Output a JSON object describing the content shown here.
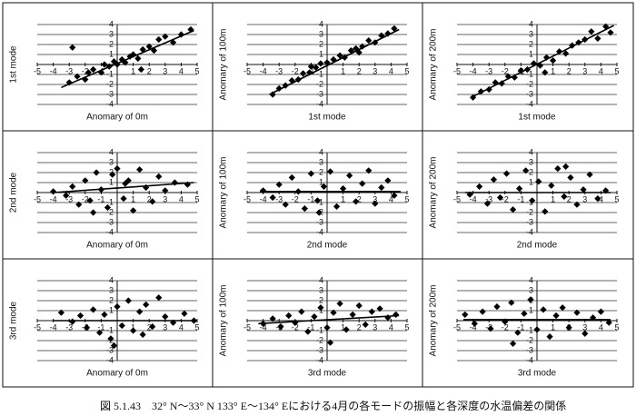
{
  "caption": "図 5.1.43　32° N～33° N 133° E～134° Eにおける4月の各モードの振幅と各深度の水温偏差の関係",
  "chart_data": [
    {
      "type": "scatter",
      "x_label": "Anomary of 0m",
      "y_label": "1st mode",
      "color": "#000000",
      "grid": true,
      "xlim": [
        -5,
        5
      ],
      "ylim": [
        -4,
        4
      ],
      "xticks": [
        -5,
        -4,
        -3,
        -2,
        -1,
        1,
        2,
        3,
        4,
        5
      ],
      "yticks": [
        -4,
        -3,
        -2,
        -1,
        1,
        2,
        3,
        4
      ],
      "x": [
        -3,
        -2.5,
        -2,
        -1.8,
        -1.5,
        -1,
        -0.8,
        -0.5,
        -0.2,
        0,
        0.3,
        0.5,
        0.8,
        1,
        1.3,
        1.6,
        2,
        2.3,
        2.6,
        3,
        3.5,
        4,
        4.6,
        -2.8,
        1.5
      ],
      "y": [
        -1.8,
        -1.2,
        -1.5,
        -0.8,
        -0.5,
        -0.8,
        0,
        -0.2,
        0.3,
        0,
        0.5,
        0.2,
        0.8,
        1,
        0.6,
        1.5,
        1.8,
        1.4,
        2.5,
        2.8,
        2.2,
        3,
        3.5,
        1.7,
        -0.5
      ],
      "trend_x": [
        -3.5,
        4.8
      ],
      "trend_y": [
        -2.3,
        3.4
      ]
    },
    {
      "type": "scatter",
      "x_label": "1st mode",
      "y_label": "Anomary of 100m",
      "color": "#000000",
      "grid": true,
      "xlim": [
        -5,
        5
      ],
      "ylim": [
        -4,
        4
      ],
      "xticks": [
        -5,
        -4,
        -3,
        -2,
        -1,
        1,
        2,
        3,
        4,
        5
      ],
      "yticks": [
        -4,
        -3,
        -2,
        -1,
        1,
        2,
        3,
        4
      ],
      "x": [
        -3.4,
        -3,
        -2.6,
        -2.2,
        -1.8,
        -1.5,
        -1.1,
        -0.7,
        -0.4,
        0,
        0.4,
        0.8,
        1.1,
        1.5,
        1.8,
        2.2,
        2.6,
        3,
        3.4,
        3.8,
        4.2,
        -1,
        2
      ],
      "y": [
        -3,
        -2.4,
        -2.1,
        -1.6,
        -1.5,
        -0.9,
        -0.8,
        -0.3,
        0.1,
        0.2,
        0.5,
        0.9,
        0.7,
        1.4,
        1.6,
        1.8,
        2.4,
        2.2,
        2.9,
        3.1,
        3.6,
        -0.2,
        1.2
      ],
      "trend_x": [
        -3.6,
        4.5
      ],
      "trend_y": [
        -3,
        3.5
      ]
    },
    {
      "type": "scatter",
      "x_label": "1st mode",
      "y_label": "Anomary of 200m",
      "color": "#000000",
      "grid": true,
      "xlim": [
        -5,
        5
      ],
      "ylim": [
        -4,
        4
      ],
      "xticks": [
        -5,
        -4,
        -3,
        -2,
        -1,
        1,
        2,
        3,
        4,
        5
      ],
      "yticks": [
        -4,
        -3,
        -2,
        -1,
        1,
        2,
        3,
        4
      ],
      "x": [
        -4,
        -3.5,
        -3,
        -2.6,
        -2.2,
        -1.8,
        -1.4,
        -1,
        -0.6,
        -0.2,
        0.2,
        0.6,
        1,
        1.4,
        1.8,
        2.2,
        2.6,
        3,
        3.4,
        3.8,
        4.3,
        4.6,
        0.5
      ],
      "y": [
        -3.3,
        -2.7,
        -2.5,
        -1.8,
        -1.9,
        -1.2,
        -1.3,
        -0.6,
        -0.5,
        0.1,
        -0.1,
        0.7,
        0.4,
        1.3,
        1.1,
        1.9,
        2.2,
        2.5,
        3.3,
        2.6,
        3.8,
        3.2,
        -0.8
      ],
      "trend_x": [
        -4,
        4.8
      ],
      "trend_y": [
        -3.2,
        3.9
      ]
    },
    {
      "type": "scatter",
      "x_label": "Anomary of 0m",
      "y_label": "2nd mode",
      "color": "#000000",
      "grid": true,
      "xlim": [
        -5,
        5
      ],
      "ylim": [
        -4,
        4
      ],
      "xticks": [
        -5,
        -4,
        -3,
        -2,
        -1,
        1,
        2,
        3,
        4,
        5
      ],
      "yticks": [
        -4,
        -3,
        -2,
        -1,
        1,
        2,
        3,
        4
      ],
      "x": [
        -4,
        -3.2,
        -2.8,
        -2.4,
        -2,
        -1.7,
        -1.3,
        -1,
        -0.6,
        -0.3,
        0,
        0.4,
        0.7,
        1,
        1.4,
        1.8,
        2.2,
        2.6,
        3,
        3.6,
        4.4,
        -1.5,
        0.5
      ],
      "y": [
        0.1,
        -0.3,
        0.6,
        -1.2,
        1.2,
        -0.8,
        2,
        0.3,
        -1.5,
        1.8,
        2.4,
        -0.6,
        1.2,
        -1.8,
        2.3,
        0.5,
        -0.9,
        1.6,
        0.2,
        1,
        0.8,
        -2,
        0.9
      ],
      "trend_x": [
        -4,
        4.8
      ],
      "trend_y": [
        0,
        1
      ]
    },
    {
      "type": "scatter",
      "x_label": "2nd mode",
      "y_label": "Anomary of 100m",
      "color": "#000000",
      "grid": true,
      "xlim": [
        -5,
        5
      ],
      "ylim": [
        -4,
        4
      ],
      "xticks": [
        -5,
        -4,
        -3,
        -2,
        -1,
        1,
        2,
        3,
        4,
        5
      ],
      "yticks": [
        -4,
        -3,
        -2,
        -1,
        1,
        2,
        3,
        4
      ],
      "x": [
        -4,
        -3.4,
        -3,
        -2.6,
        -2.2,
        -1.8,
        -1.4,
        -1,
        -0.6,
        -0.2,
        0.2,
        0.6,
        1,
        1.4,
        1.8,
        2.2,
        2.6,
        3,
        3.4,
        3.8,
        4.2,
        -0.5
      ],
      "y": [
        0.2,
        -0.5,
        0.8,
        -1.2,
        1.5,
        0.1,
        -1.6,
        1.9,
        -0.8,
        0.6,
        2.1,
        -1.4,
        0.4,
        1.7,
        -0.9,
        0.9,
        2.2,
        -1.1,
        0.5,
        1.2,
        -0.3,
        -2
      ],
      "trend_x": [
        -4.2,
        4.6
      ],
      "trend_y": [
        0.1,
        0.1
      ]
    },
    {
      "type": "scatter",
      "x_label": "2nd mode",
      "y_label": "Anomary of 200m",
      "color": "#000000",
      "grid": true,
      "xlim": [
        -5,
        5
      ],
      "ylim": [
        -4,
        4
      ],
      "xticks": [
        -5,
        -4,
        -3,
        -2,
        -1,
        1,
        2,
        3,
        4,
        5
      ],
      "yticks": [
        -4,
        -3,
        -2,
        -1,
        1,
        2,
        3,
        4
      ],
      "x": [
        -4.2,
        -3.6,
        -3.1,
        -2.7,
        -2.3,
        -1.9,
        -1.5,
        -1.1,
        -0.7,
        -0.3,
        0.1,
        0.5,
        0.9,
        1.3,
        1.7,
        2.1,
        2.5,
        2.9,
        3.3,
        3.8,
        4.3,
        1.8
      ],
      "y": [
        -0.2,
        0.6,
        -1.1,
        1.3,
        -0.5,
        1.9,
        -1.7,
        0.4,
        2.2,
        -0.8,
        1.1,
        -1.9,
        0.7,
        2.4,
        -0.4,
        1.5,
        -1.2,
        0.3,
        1.8,
        -0.6,
        0.2,
        2.6
      ],
      "trend_x": [
        -4.5,
        4.6
      ],
      "trend_y": [
        0,
        0
      ]
    },
    {
      "type": "scatter",
      "x_label": "Anomary of 0m",
      "y_label": "3rd mode",
      "color": "#000000",
      "grid": true,
      "xlim": [
        -5,
        5
      ],
      "ylim": [
        -4,
        4
      ],
      "xticks": [
        -5,
        -4,
        -3,
        -2,
        -1,
        1,
        2,
        3,
        4,
        5
      ],
      "yticks": [
        -4,
        -3,
        -2,
        -1,
        1,
        2,
        3,
        4
      ],
      "x": [
        -3.5,
        -2.8,
        -2.3,
        -1.9,
        -1.5,
        -1.1,
        -0.8,
        -0.4,
        0,
        0.3,
        0.7,
        1,
        1.4,
        1.8,
        2.2,
        2.6,
        3,
        3.5,
        4.2,
        4.8,
        -0.2,
        1.6
      ],
      "y": [
        0.8,
        -0.1,
        0.5,
        -0.7,
        1.1,
        -1.2,
        0.6,
        -1.8,
        1.4,
        -0.5,
        2,
        -1,
        0.9,
        1.6,
        -0.6,
        2.3,
        0.4,
        -0.2,
        0.7,
        0,
        -2.5,
        -1.4
      ],
      "trend_x": [
        -4,
        4.8
      ],
      "trend_y": [
        0,
        0
      ]
    },
    {
      "type": "scatter",
      "x_label": "3rd mode",
      "y_label": "Anomary of 100m",
      "color": "#000000",
      "grid": true,
      "xlim": [
        -5,
        5
      ],
      "ylim": [
        -4,
        4
      ],
      "xticks": [
        -5,
        -4,
        -3,
        -2,
        -1,
        1,
        2,
        3,
        4,
        5
      ],
      "yticks": [
        -4,
        -3,
        -2,
        -1,
        1,
        2,
        3,
        4
      ],
      "x": [
        -4,
        -3.4,
        -2.9,
        -2.4,
        -2,
        -1.6,
        -1.2,
        -0.8,
        -0.4,
        0,
        0.4,
        0.8,
        1.2,
        1.6,
        2,
        2.4,
        2.8,
        3.3,
        3.8,
        4.3,
        0.2
      ],
      "y": [
        -0.3,
        0.2,
        -0.6,
        0.5,
        -0.2,
        0.9,
        -1.1,
        0.4,
        1.3,
        -0.7,
        0.8,
        1.7,
        -0.9,
        0.6,
        1.5,
        -0.4,
        0.9,
        1.2,
        0.3,
        0.6,
        -2.2
      ],
      "trend_x": [
        -4.3,
        4.5
      ],
      "trend_y": [
        -0.3,
        0.5
      ]
    },
    {
      "type": "scatter",
      "x_label": "3rd mode",
      "y_label": "Anomary of 200m",
      "color": "#000000",
      "grid": true,
      "xlim": [
        -5,
        5
      ],
      "ylim": [
        -4,
        4
      ],
      "xticks": [
        -5,
        -4,
        -3,
        -2,
        -1,
        1,
        2,
        3,
        4,
        5
      ],
      "yticks": [
        -4,
        -3,
        -2,
        -1,
        1,
        2,
        3,
        4
      ],
      "x": [
        -4.5,
        -3.9,
        -3.4,
        -2.9,
        -2.5,
        -2,
        -1.6,
        -1.2,
        -0.8,
        -0.4,
        0,
        0.4,
        0.8,
        1.2,
        1.6,
        2,
        2.5,
        3,
        3.5,
        4,
        4.5,
        -1.5
      ],
      "y": [
        0.6,
        -0.3,
        0.9,
        -0.8,
        1.4,
        -0.1,
        1.8,
        -1.2,
        0.7,
        2.1,
        -0.9,
        1.1,
        -1.6,
        0.5,
        1.3,
        -0.7,
        0.8,
        -1.3,
        0.3,
        0.9,
        -0.2,
        -2.3
      ],
      "trend_x": [
        -4.6,
        4.6
      ],
      "trend_y": [
        0.1,
        0.1
      ]
    }
  ]
}
